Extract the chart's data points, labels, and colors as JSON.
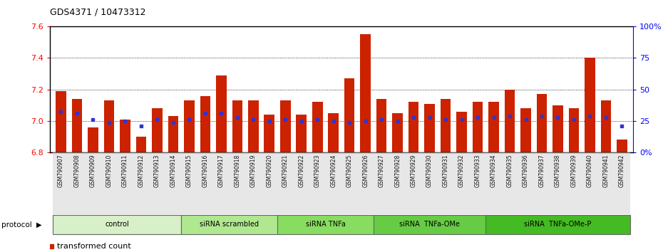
{
  "title": "GDS4371 / 10473312",
  "samples": [
    "GSM790907",
    "GSM790908",
    "GSM790909",
    "GSM790910",
    "GSM790911",
    "GSM790912",
    "GSM790913",
    "GSM790914",
    "GSM790915",
    "GSM790916",
    "GSM790917",
    "GSM790918",
    "GSM790919",
    "GSM790920",
    "GSM790921",
    "GSM790922",
    "GSM790923",
    "GSM790924",
    "GSM790925",
    "GSM790926",
    "GSM790927",
    "GSM790928",
    "GSM790929",
    "GSM790930",
    "GSM790931",
    "GSM790932",
    "GSM790933",
    "GSM790934",
    "GSM790935",
    "GSM790936",
    "GSM790937",
    "GSM790938",
    "GSM790939",
    "GSM790940",
    "GSM790941",
    "GSM790942"
  ],
  "bar_values": [
    7.19,
    7.14,
    6.96,
    7.13,
    7.01,
    6.9,
    7.08,
    7.03,
    7.13,
    7.16,
    7.29,
    7.13,
    7.13,
    7.04,
    7.13,
    7.04,
    7.12,
    7.05,
    7.27,
    7.55,
    7.14,
    7.05,
    7.12,
    7.11,
    7.14,
    7.06,
    7.12,
    7.12,
    7.2,
    7.08,
    7.17,
    7.1,
    7.08,
    7.4,
    7.13,
    6.88
  ],
  "blue_dot_values": [
    7.06,
    7.05,
    7.01,
    6.99,
    7.0,
    6.97,
    7.01,
    6.99,
    7.01,
    7.05,
    7.05,
    7.02,
    7.01,
    7.0,
    7.01,
    7.0,
    7.01,
    7.0,
    6.99,
    7.0,
    7.01,
    7.0,
    7.02,
    7.02,
    7.01,
    7.01,
    7.02,
    7.02,
    7.03,
    7.01,
    7.03,
    7.02,
    7.01,
    7.03,
    7.02,
    6.97
  ],
  "ylim": [
    6.8,
    7.6
  ],
  "yticks": [
    6.8,
    7.0,
    7.2,
    7.4,
    7.6
  ],
  "bar_color": "#cc2200",
  "dot_color": "#3333cc",
  "groups": [
    {
      "label": "control",
      "start": 0,
      "end": 8,
      "color": "#d8f0c8"
    },
    {
      "label": "siRNA scrambled",
      "start": 8,
      "end": 14,
      "color": "#b0e890"
    },
    {
      "label": "siRNA TNFa",
      "start": 14,
      "end": 20,
      "color": "#88dd60"
    },
    {
      "label": "siRNA  TNFa-OMe",
      "start": 20,
      "end": 27,
      "color": "#66cc44"
    },
    {
      "label": "siRNA  TNFa-OMe-P",
      "start": 27,
      "end": 36,
      "color": "#44bb22"
    }
  ],
  "xtick_bg": "#d8d8d8",
  "right_yticklabels": [
    "0%",
    "25",
    "50",
    "75",
    "100%"
  ]
}
